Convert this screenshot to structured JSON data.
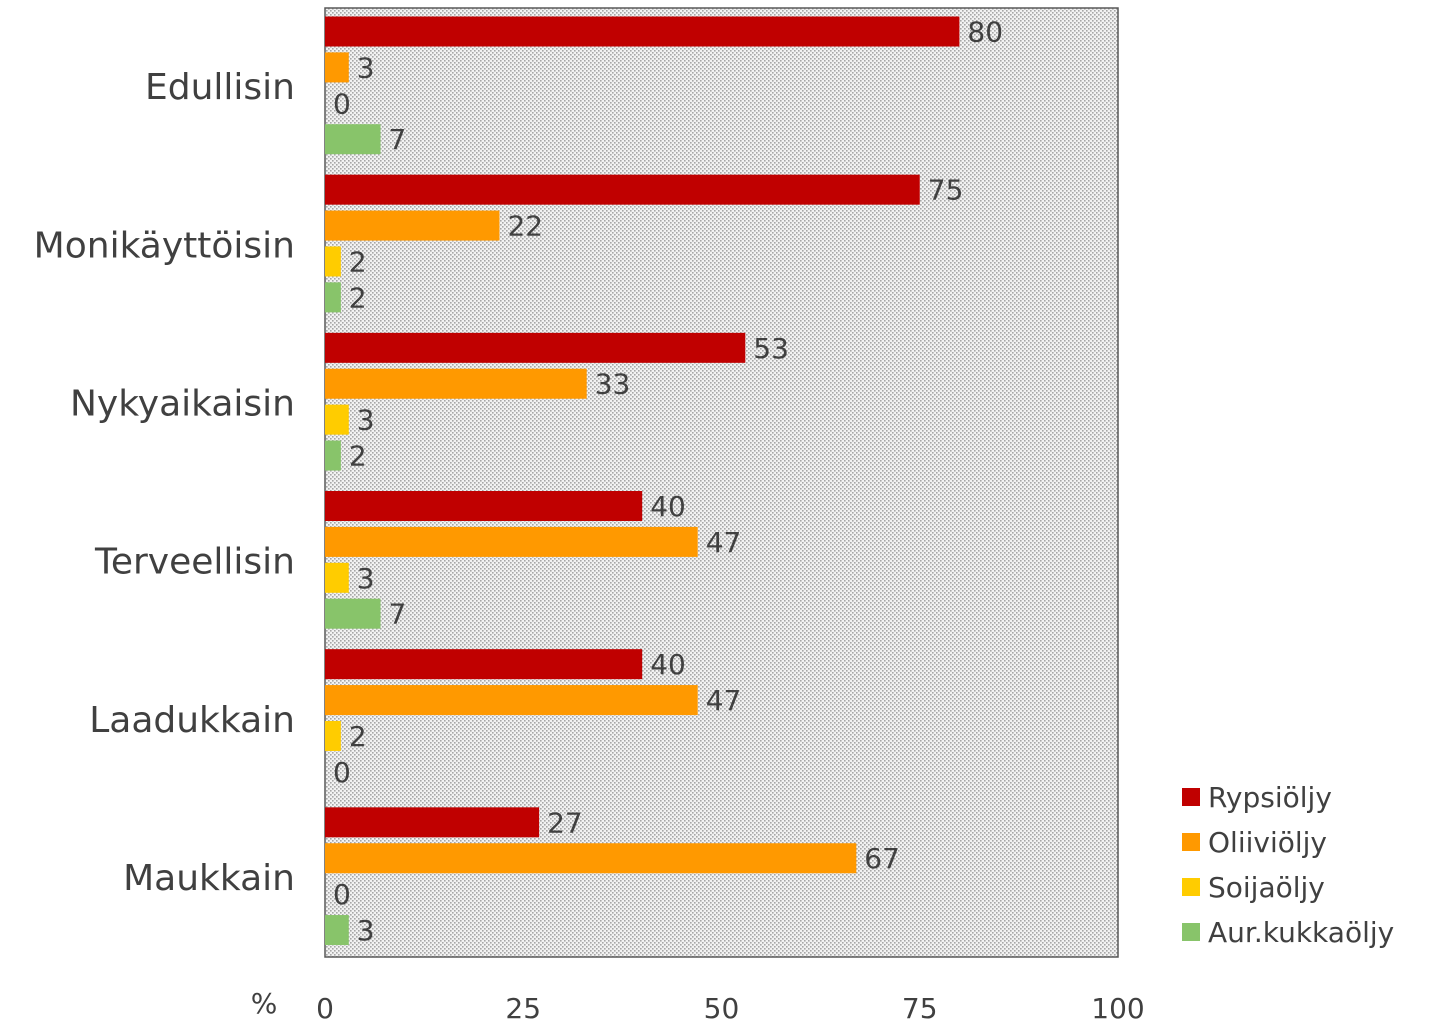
{
  "chart_data": {
    "type": "bar",
    "orientation": "horizontal",
    "categories": [
      "Edullisin",
      "Monikäyttöisin",
      "Nykyaikaisin",
      "Terveellisin",
      "Laadukkain",
      "Maukkain"
    ],
    "series": [
      {
        "name": "Rypsiöljy",
        "color": "#c00000",
        "values": [
          80,
          75,
          53,
          40,
          40,
          27
        ]
      },
      {
        "name": "Oliiviöljy",
        "color": "#ff9900",
        "values": [
          3,
          22,
          33,
          47,
          47,
          67
        ]
      },
      {
        "name": "Soijaöljy",
        "color": "#ffcc00",
        "values": [
          0,
          2,
          3,
          3,
          2,
          0
        ]
      },
      {
        "name": "Aur.kukkaöljy",
        "color": "#88c46a",
        "values": [
          7,
          2,
          2,
          7,
          0,
          3
        ]
      }
    ],
    "xlabel": "%",
    "xlim": [
      0,
      100
    ],
    "xticks": [
      0,
      25,
      50,
      75,
      100
    ],
    "plot_background": "#d9d9d9",
    "legend_position": "bottom-right",
    "grid": false
  }
}
